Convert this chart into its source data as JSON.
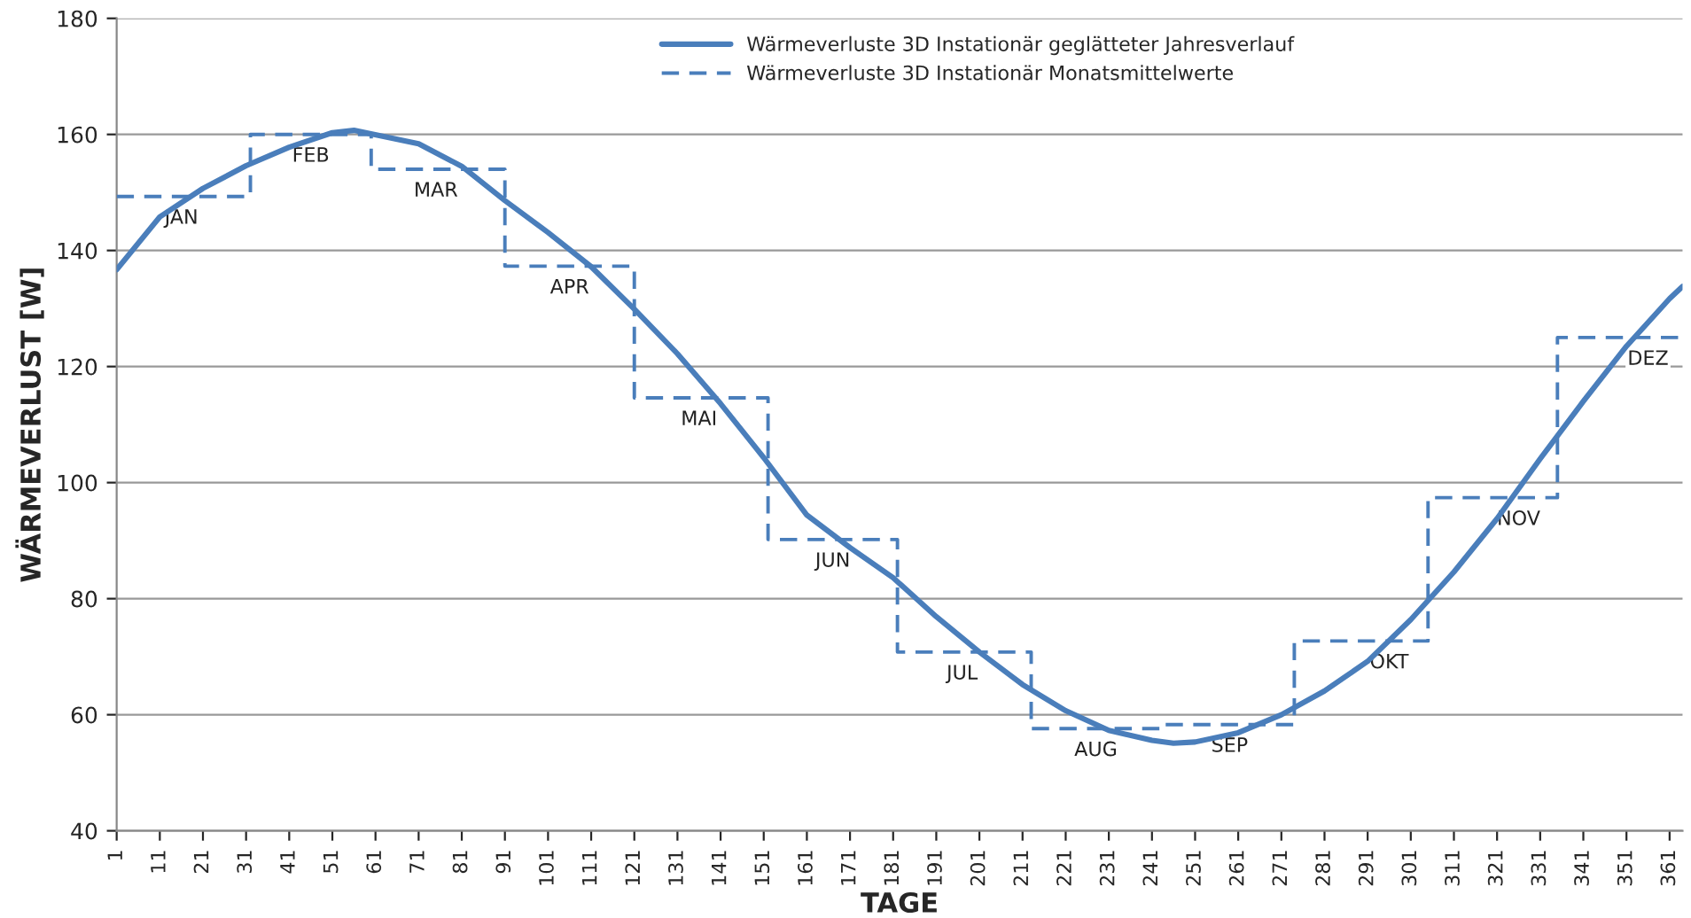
{
  "chart_data": {
    "type": "line",
    "xlabel": "TAGE",
    "ylabel": "WÄRMEVERLUST [W]",
    "xlim": [
      1,
      364
    ],
    "xticks": [
      1,
      11,
      21,
      31,
      41,
      51,
      61,
      71,
      81,
      91,
      101,
      111,
      121,
      131,
      141,
      151,
      161,
      171,
      181,
      191,
      201,
      211,
      221,
      231,
      241,
      251,
      261,
      271,
      281,
      291,
      301,
      311,
      321,
      331,
      341,
      351,
      361
    ],
    "ylim": [
      40,
      180
    ],
    "yticks": [
      40,
      60,
      80,
      100,
      120,
      140,
      160,
      180
    ],
    "grid": "y",
    "legend": "top",
    "series": [
      {
        "name": "Wärmeverluste 3D Instationär geglätteter Jahresverlauf",
        "color": "#4a7ebb",
        "line_style": "solid",
        "x": [
          1,
          11,
          21,
          31,
          41,
          51,
          56,
          71,
          81,
          91,
          101,
          111,
          121,
          131,
          141,
          151,
          161,
          171,
          181,
          191,
          201,
          211,
          221,
          231,
          241,
          246,
          251,
          261,
          271,
          281,
          291,
          301,
          311,
          321,
          331,
          341,
          351,
          361,
          364
        ],
        "values": [
          136.7,
          145.8,
          150.7,
          154.6,
          157.8,
          160.3,
          160.7,
          158.4,
          154.5,
          148.6,
          143.1,
          137.2,
          129.9,
          122.2,
          113.6,
          104.3,
          94.4,
          88.8,
          83.6,
          76.9,
          70.8,
          65.2,
          60.7,
          57.3,
          55.6,
          55.1,
          55.3,
          56.9,
          60.0,
          64.1,
          69.2,
          76.4,
          84.6,
          93.8,
          104.1,
          114.0,
          123.5,
          131.7,
          133.8
        ]
      },
      {
        "name": "Wärmeverluste 3D Instationär Monatsmittelwerte",
        "type": "step",
        "color": "#4a7ebb",
        "line_style": "dashed",
        "x": [
          1,
          32,
          60,
          91,
          121,
          152,
          182,
          213,
          244,
          274,
          305,
          335,
          364
        ],
        "values": [
          149.3,
          160.0,
          154.0,
          137.3,
          114.6,
          90.2,
          70.8,
          57.6,
          58.3,
          72.7,
          97.4,
          125.0,
          125.0
        ]
      }
    ],
    "annotations": [
      {
        "text": "JAN",
        "x": 16,
        "y": 149.3
      },
      {
        "text": "FEB",
        "x": 46,
        "y": 160.0
      },
      {
        "text": "MAR",
        "x": 75,
        "y": 154.0
      },
      {
        "text": "APR",
        "x": 106,
        "y": 137.3
      },
      {
        "text": "MAI",
        "x": 136,
        "y": 114.6
      },
      {
        "text": "JUN",
        "x": 167,
        "y": 90.2
      },
      {
        "text": "JUL",
        "x": 197,
        "y": 70.8
      },
      {
        "text": "AUG",
        "x": 228,
        "y": 57.6
      },
      {
        "text": "SEP",
        "x": 259,
        "y": 58.3
      },
      {
        "text": "OKT",
        "x": 296,
        "y": 72.7
      },
      {
        "text": "NOV",
        "x": 326,
        "y": 97.4
      },
      {
        "text": "DEZ",
        "x": 356,
        "y": 125.0
      }
    ]
  }
}
